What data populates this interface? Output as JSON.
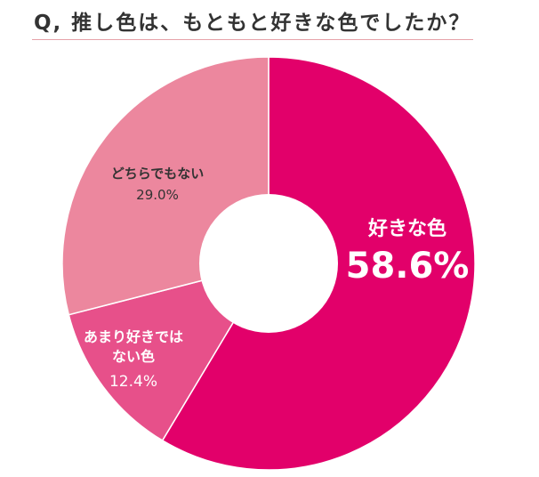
{
  "chart_data": {
    "type": "pie",
    "title": "Q, 推し色は、もともと好きな色でしたか？",
    "slices": [
      {
        "label": "好きな色",
        "lines": [
          "好きな色"
        ],
        "value": 58.6,
        "value_label": "58.6%",
        "color": "#e2006a",
        "text_color": "#ffffff"
      },
      {
        "label": "あまり好きではない色",
        "lines": [
          "あまり好きでは",
          "ない色"
        ],
        "value": 12.4,
        "value_label": "12.4%",
        "color": "#e7508a",
        "text_color": "#ffffff"
      },
      {
        "label": "どちらでもない",
        "lines": [
          "どちらでもない"
        ],
        "value": 29.0,
        "value_label": "29.0%",
        "color": "#ec879e",
        "text_color": "#333333"
      }
    ],
    "start_angle_deg": 0,
    "direction": "clockwise",
    "donut": true,
    "legend": "none"
  }
}
